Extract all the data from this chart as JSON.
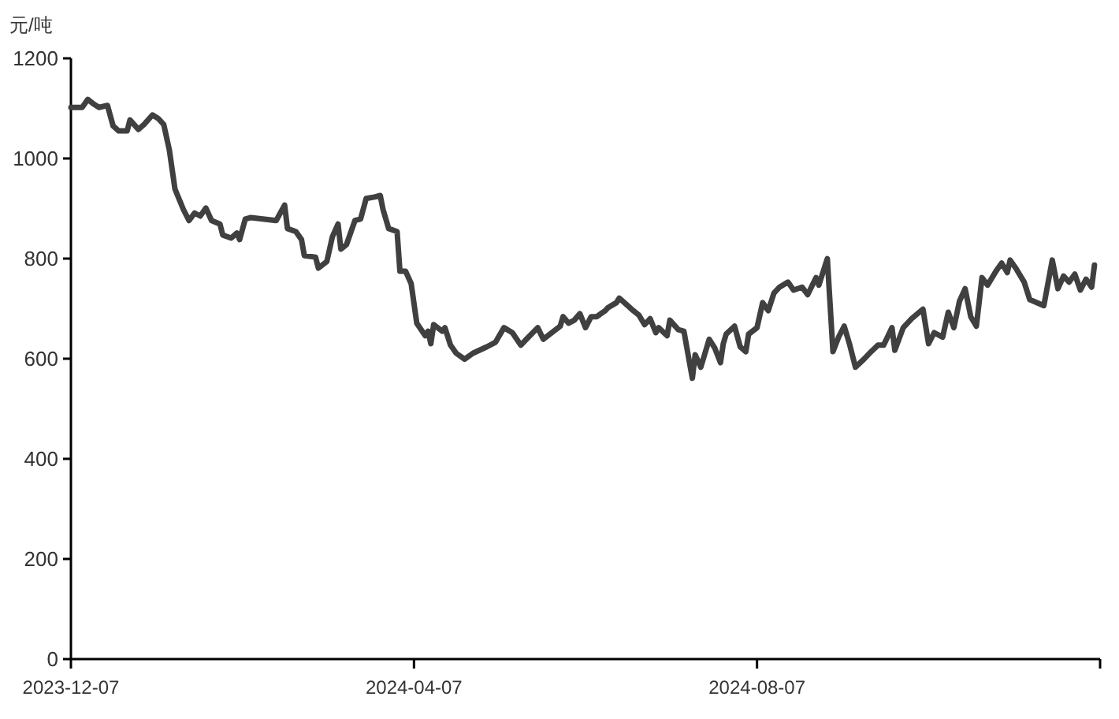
{
  "chart_data": {
    "type": "line",
    "ylabel": "元/吨",
    "x": [
      "2023-12-07",
      "2023-12-11",
      "2023-12-13",
      "2023-12-15",
      "2023-12-17",
      "2023-12-20",
      "2023-12-22",
      "2023-12-24",
      "2023-12-27",
      "2023-12-28",
      "2023-12-31",
      "2024-01-02",
      "2024-01-05",
      "2024-01-07",
      "2024-01-09",
      "2024-01-11",
      "2024-01-13",
      "2024-01-16",
      "2024-01-18",
      "2024-01-20",
      "2024-01-22",
      "2024-01-24",
      "2024-01-26",
      "2024-01-29",
      "2024-01-30",
      "2024-02-02",
      "2024-02-04",
      "2024-02-05",
      "2024-02-07",
      "2024-02-09",
      "2024-02-18",
      "2024-02-21",
      "2024-02-22",
      "2024-02-25",
      "2024-02-27",
      "2024-02-28",
      "2024-03-03",
      "2024-03-04",
      "2024-03-07",
      "2024-03-09",
      "2024-03-11",
      "2024-03-12",
      "2024-03-14",
      "2024-03-17",
      "2024-03-19",
      "2024-03-21",
      "2024-03-24",
      "2024-03-26",
      "2024-03-27",
      "2024-03-29",
      "2024-04-01",
      "2024-04-02",
      "2024-04-04",
      "2024-04-06",
      "2024-04-08",
      "2024-04-11",
      "2024-04-12",
      "2024-04-13",
      "2024-04-14",
      "2024-04-17",
      "2024-04-18",
      "2024-04-20",
      "2024-04-22",
      "2024-04-25",
      "2024-04-28",
      "2024-05-03",
      "2024-05-06",
      "2024-05-09",
      "2024-05-12",
      "2024-05-15",
      "2024-05-17",
      "2024-05-21",
      "2024-05-23",
      "2024-05-26",
      "2024-05-29",
      "2024-05-30",
      "2024-06-01",
      "2024-06-03",
      "2024-06-05",
      "2024-06-07",
      "2024-06-09",
      "2024-06-11",
      "2024-06-14",
      "2024-06-15",
      "2024-06-18",
      "2024-06-19",
      "2024-06-22",
      "2024-06-24",
      "2024-06-26",
      "2024-06-28",
      "2024-06-30",
      "2024-07-02",
      "2024-07-03",
      "2024-07-06",
      "2024-07-07",
      "2024-07-10",
      "2024-07-12",
      "2024-07-14",
      "2024-07-15",
      "2024-07-16",
      "2024-07-18",
      "2024-07-21",
      "2024-07-23",
      "2024-07-25",
      "2024-07-26",
      "2024-07-27",
      "2024-07-30",
      "2024-08-01",
      "2024-08-03",
      "2024-08-04",
      "2024-08-07",
      "2024-08-09",
      "2024-08-11",
      "2024-08-13",
      "2024-08-15",
      "2024-08-18",
      "2024-08-20",
      "2024-08-23",
      "2024-08-25",
      "2024-08-28",
      "2024-08-29",
      "2024-09-01",
      "2024-09-03",
      "2024-09-05",
      "2024-09-07",
      "2024-09-09",
      "2024-09-11",
      "2024-09-14",
      "2024-09-16",
      "2024-09-19",
      "2024-09-21",
      "2024-09-24",
      "2024-09-25",
      "2024-09-28",
      "2024-10-01",
      "2024-10-05",
      "2024-10-07",
      "2024-10-09",
      "2024-10-12",
      "2024-10-14",
      "2024-10-16",
      "2024-10-18",
      "2024-10-20",
      "2024-10-22",
      "2024-10-24",
      "2024-10-26",
      "2024-10-28",
      "2024-10-31",
      "2024-11-02",
      "2024-11-04",
      "2024-11-05",
      "2024-11-07",
      "2024-11-10",
      "2024-11-12",
      "2024-11-17",
      "2024-11-20",
      "2024-11-22",
      "2024-11-24",
      "2024-11-26",
      "2024-11-28",
      "2024-11-30",
      "2024-12-02",
      "2024-12-04",
      "2024-12-05"
    ],
    "series": [
      {
        "color": "#404040",
        "values": [
          1102,
          1102,
          1118,
          1109,
          1102,
          1106,
          1065,
          1055,
          1055,
          1077,
          1058,
          1068,
          1087,
          1080,
          1068,
          1017,
          939,
          898,
          876,
          891,
          885,
          901,
          876,
          869,
          847,
          841,
          851,
          838,
          879,
          882,
          876,
          907,
          860,
          854,
          838,
          806,
          803,
          781,
          794,
          844,
          869,
          819,
          828,
          876,
          879,
          920,
          923,
          926,
          898,
          860,
          854,
          775,
          775,
          750,
          671,
          646,
          655,
          630,
          668,
          655,
          662,
          627,
          611,
          599,
          611,
          624,
          633,
          662,
          652,
          627,
          639,
          662,
          639,
          652,
          665,
          684,
          671,
          677,
          690,
          662,
          684,
          684,
          696,
          702,
          712,
          721,
          706,
          696,
          687,
          668,
          680,
          652,
          662,
          646,
          677,
          658,
          655,
          592,
          561,
          608,
          583,
          639,
          621,
          592,
          630,
          649,
          665,
          624,
          614,
          649,
          662,
          712,
          696,
          731,
          743,
          753,
          737,
          743,
          728,
          762,
          747,
          800,
          614,
          643,
          665,
          627,
          583,
          599,
          611,
          627,
          627,
          662,
          617,
          662,
          680,
          699,
          630,
          652,
          643,
          693,
          662,
          715,
          740,
          684,
          665,
          762,
          747,
          775,
          791,
          772,
          797,
          781,
          753,
          718,
          706,
          797,
          740,
          765,
          753,
          769,
          737,
          759,
          743,
          787
        ]
      }
    ],
    "xlim": [
      "2023-12-07",
      "2024-12-07"
    ],
    "xticks": [
      {
        "value": "2023-12-07",
        "label": "2023-12-07"
      },
      {
        "value": "2024-04-07",
        "label": "2024-04-07"
      },
      {
        "value": "2024-08-07",
        "label": "2024-08-07"
      },
      {
        "value": "2024-12-07",
        "label": null
      }
    ],
    "ylim": [
      0,
      1200
    ],
    "yticks": [
      0,
      200,
      400,
      600,
      800,
      1000,
      1200
    ]
  }
}
